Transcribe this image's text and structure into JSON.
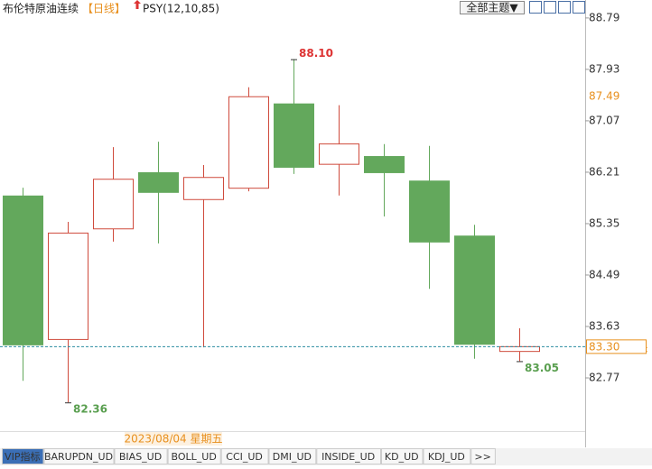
{
  "header": {
    "title": "布伦特原油连续",
    "period": "【日线】",
    "indicator": "PSY(12,10,85)",
    "theme_button": "全部主题▼"
  },
  "chart_data": {
    "type": "candlestick",
    "categories": [
      null,
      null,
      null,
      null,
      null,
      null,
      null,
      null,
      null,
      null,
      null,
      null
    ],
    "open": [
      85.82,
      83.42,
      85.27,
      86.21,
      85.76,
      85.95,
      87.36,
      86.35,
      86.48,
      86.07,
      85.15,
      83.22
    ],
    "high": [
      85.95,
      85.38,
      86.63,
      86.72,
      86.33,
      87.63,
      88.1,
      87.33,
      86.68,
      86.65,
      85.33,
      83.6
    ],
    "low": [
      82.72,
      82.36,
      85.05,
      85.02,
      83.28,
      85.89,
      86.18,
      85.82,
      85.47,
      84.26,
      83.09,
      83.05
    ],
    "close": [
      83.33,
      85.2,
      86.1,
      85.88,
      86.13,
      87.48,
      86.3,
      86.69,
      86.21,
      85.05,
      83.34,
      83.3
    ],
    "up_color": "#cf4a3c",
    "down_color": "#63a85c",
    "ylim": [
      81.88,
      89.09
    ],
    "yticks": [
      88.79,
      87.93,
      87.07,
      86.21,
      85.35,
      84.49,
      83.63,
      82.77
    ],
    "annotations": [
      {
        "value": 88.1,
        "label": "88.10"
      },
      {
        "value": 82.36,
        "label": "82.36"
      },
      {
        "value": 83.05,
        "label": "83.05"
      }
    ],
    "crosshair": {
      "value": 87.49,
      "label": "87.49",
      "date": "2023/08/04 星期五"
    },
    "last_price": {
      "value": 83.3,
      "label": "83.30"
    }
  },
  "tabs": [
    "VIP指标",
    "BARUPDN_UD",
    "BIAS_UD",
    "BOLL_UD",
    "CCI_UD",
    "DMI_UD",
    "INSIDE_UD",
    "KD_UD",
    "KDJ_UD",
    ">>"
  ]
}
